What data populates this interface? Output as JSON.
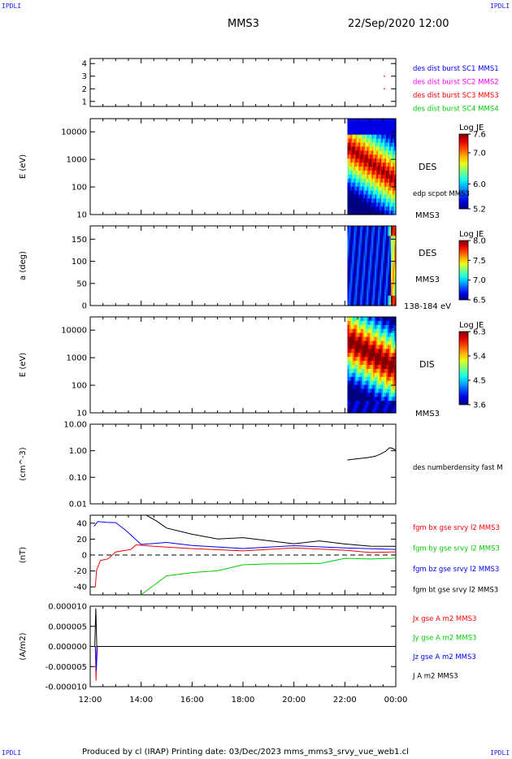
{
  "corner_label": "IPDLI",
  "header": {
    "spacecraft": "MMS3",
    "datetime": "22/Sep/2020 12:00"
  },
  "footer": {
    "text": "Produced by cl (IRAP)   Printing date: 03/Dec/2023   mms_mms3_srvy_vue_web1.cl"
  },
  "colors": {
    "blue": "#0000ff",
    "magenta": "#ff00ff",
    "red": "#ff0000",
    "green": "#00cc00",
    "black": "#000000"
  },
  "chart_data": [
    {
      "type": "scatter",
      "y_ticks": [
        "1",
        "2",
        "3",
        "4"
      ],
      "ylim": [
        0.6,
        4.4
      ],
      "legend": [
        {
          "label": "des dist burst SC1 MMS1",
          "color": "#0000ff"
        },
        {
          "label": "des dist burst SC2 MMS2",
          "color": "#ff00ff"
        },
        {
          "label": "des dist burst SC3 MMS3",
          "color": "#ff0000"
        },
        {
          "label": "des dist burst SC4 MMS4",
          "color": "#00cc00"
        }
      ],
      "points": [
        {
          "x": 23.55,
          "y": 3
        },
        {
          "x": 23.55,
          "y": 2
        }
      ]
    },
    {
      "type": "heatmap",
      "ylabel": "E (eV)",
      "y_ticks": [
        "10",
        "100",
        "1000",
        "10000"
      ],
      "ylim": [
        10,
        30000
      ],
      "x_start": 22.1,
      "labels": [
        "DES",
        "edp scpot MMS3",
        "MMS3"
      ],
      "colorbar": {
        "title": "Log JE",
        "ticks": [
          "7.6",
          "7.0",
          "6.0",
          "5.2"
        ],
        "range": [
          5.2,
          7.6
        ]
      }
    },
    {
      "type": "heatmap",
      "ylabel": "a (deg)",
      "y_ticks": [
        "0",
        "50",
        "100",
        "150"
      ],
      "ylim": [
        0,
        180
      ],
      "x_start": 22.1,
      "labels": [
        "DES",
        "MMS3",
        "138-184 eV"
      ],
      "colorbar": {
        "title": "Log JE",
        "ticks": [
          "8.0",
          "7.5",
          "7.0",
          "6.5"
        ],
        "range": [
          6.5,
          8.0
        ]
      }
    },
    {
      "type": "heatmap",
      "ylabel": "E (eV)",
      "y_ticks": [
        "10",
        "100",
        "1000",
        "10000"
      ],
      "ylim": [
        10,
        30000
      ],
      "x_start": 22.1,
      "labels": [
        "DIS",
        "MMS3"
      ],
      "colorbar": {
        "title": "Log JE",
        "ticks": [
          "6.3",
          "5.4",
          "4.5",
          "3.6"
        ],
        "range": [
          3.6,
          6.3
        ]
      }
    },
    {
      "type": "line",
      "ylabel": "(cm^-3)",
      "y_ticks": [
        "0.01",
        "0.10",
        "1.00",
        "10.00"
      ],
      "ylim": [
        0.01,
        10
      ],
      "series": [
        {
          "name": "des numberdensity fast M",
          "color": "#000000",
          "x": [
            22.1,
            22.5,
            22.9,
            23.2,
            23.4,
            23.6,
            23.75,
            23.85,
            24.0
          ],
          "y": [
            0.45,
            0.5,
            0.55,
            0.62,
            0.75,
            0.95,
            1.3,
            1.25,
            1.05
          ]
        }
      ]
    },
    {
      "type": "line",
      "ylabel": "(nT)",
      "y_ticks": [
        "-40",
        "-20",
        "0",
        "20",
        "40"
      ],
      "ylim": [
        -50,
        50
      ],
      "series": [
        {
          "name": "fgm bx gse srvy l2 MMS3",
          "color": "#ff0000",
          "x": [
            12.2,
            12.25,
            12.4,
            12.7,
            13.0,
            13.4,
            13.6,
            13.8,
            14.5,
            16,
            18,
            20,
            22,
            23,
            24
          ],
          "y": [
            -40,
            -20,
            -6,
            -2,
            2,
            6,
            9,
            10,
            10,
            9,
            8,
            7,
            6,
            5,
            4
          ]
        },
        {
          "name": "fgm by gse srvy l2 MMS3",
          "color": "#00cc00",
          "x": [
            14.0,
            14.3,
            15.0,
            16.0,
            17.0,
            18.0,
            19.0,
            20.0,
            21.0,
            22.0,
            23.0,
            24.0
          ],
          "y": [
            -50,
            -40,
            -28,
            -22,
            -18,
            -15,
            -12,
            -10,
            -8,
            -6,
            -5,
            -4
          ]
        },
        {
          "name": "fgm bz gse srvy l2 MMS3",
          "color": "#0000ff",
          "x": [
            12.15,
            12.3,
            12.6,
            13.0,
            13.4,
            13.6,
            14.0,
            15.0,
            16.0,
            18.0,
            20.0,
            22.0,
            24.0
          ],
          "y": [
            36,
            42,
            43,
            38,
            30,
            26,
            16,
            14,
            12,
            10,
            9,
            8,
            7
          ]
        },
        {
          "name": "fgm bt gse srvy l2 MMS3",
          "color": "#000000",
          "x": [
            14.2,
            14.6,
            15.0,
            16.0,
            17.0,
            18.0,
            19.0,
            20.0,
            21.0,
            22.0,
            23.0,
            24.0
          ],
          "y": [
            50,
            40,
            33,
            27,
            23,
            20,
            18,
            16,
            15,
            13,
            12,
            11
          ]
        }
      ]
    },
    {
      "type": "line",
      "ylabel": "(A/m2)",
      "y_ticks": [
        "-0.000010",
        "-0.000005",
        "0.000000",
        "0.000005",
        "0.000010"
      ],
      "ylim": [
        -1e-05,
        1e-05
      ],
      "series": [
        {
          "name": "Jx gse A m2 MMS3",
          "color": "#ff0000",
          "x": [
            12.2,
            12.23,
            12.26
          ],
          "y": [
            0,
            -8.5e-06,
            0
          ]
        },
        {
          "name": "Jy gse A m2 MMS3",
          "color": "#00cc00",
          "x": [
            12.2,
            24.0
          ],
          "y": [
            0,
            0
          ]
        },
        {
          "name": "Jz gse A m2 MMS3",
          "color": "#0000ff",
          "x": [
            12.2,
            12.24,
            12.28
          ],
          "y": [
            0,
            -6e-06,
            0
          ]
        },
        {
          "name": "J A m2 MMS3",
          "color": "#000000",
          "x": [
            12.18,
            12.22,
            12.26,
            24.0
          ],
          "y": [
            0,
            9.5e-06,
            0,
            0
          ]
        }
      ]
    }
  ],
  "x_axis": {
    "ticks": [
      "12:00",
      "14:00",
      "16:00",
      "18:00",
      "20:00",
      "22:00",
      "00:00"
    ],
    "range_hours": [
      12,
      24
    ]
  }
}
